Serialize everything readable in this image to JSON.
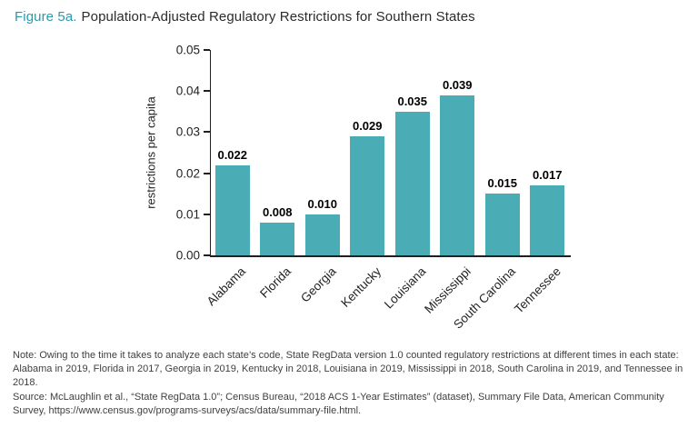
{
  "chart_data": {
    "type": "bar",
    "figure_label": "Figure 5a.",
    "title": "Population-Adjusted Regulatory Restrictions for Southern States",
    "categories": [
      "Alabama",
      "Florida",
      "Georgia",
      "Kentucky",
      "Louisiana",
      "Mississippi",
      "South Carolina",
      "Tennessee"
    ],
    "values": [
      0.022,
      0.008,
      0.01,
      0.029,
      0.035,
      0.039,
      0.015,
      0.017
    ],
    "value_labels": [
      "0.022",
      "0.008",
      "0.010",
      "0.029",
      "0.035",
      "0.039",
      "0.015",
      "0.017"
    ],
    "xlabel": "",
    "ylabel": "restrictions per capita",
    "ylim": [
      0,
      0.05
    ],
    "yticks": [
      "0.00",
      "0.01",
      "0.02",
      "0.03",
      "0.04",
      "0.05"
    ],
    "grid": false,
    "legend_position": "none"
  },
  "colors": {
    "bar": "#4aacb5",
    "figure_label": "#2a9aab",
    "axis_text": "#231f20"
  },
  "notes": {
    "note": "Note: Owing to the time it takes to analyze each state’s code, State RegData version 1.0 counted regulatory restrictions at different times in each state: Alabama in 2019, Florida in 2017, Georgia in 2019, Kentucky in 2018, Louisiana in 2019, Mississippi in 2018, South Carolina in 2019, and Tennessee in 2018.",
    "source": "Source: McLaughlin et al., “State RegData 1.0”; Census Bureau, “2018 ACS 1-Year Estimates” (dataset), Summary File Data, American Community Survey, https://www.census.gov/programs-surveys/acs/data/summary-file.html."
  }
}
